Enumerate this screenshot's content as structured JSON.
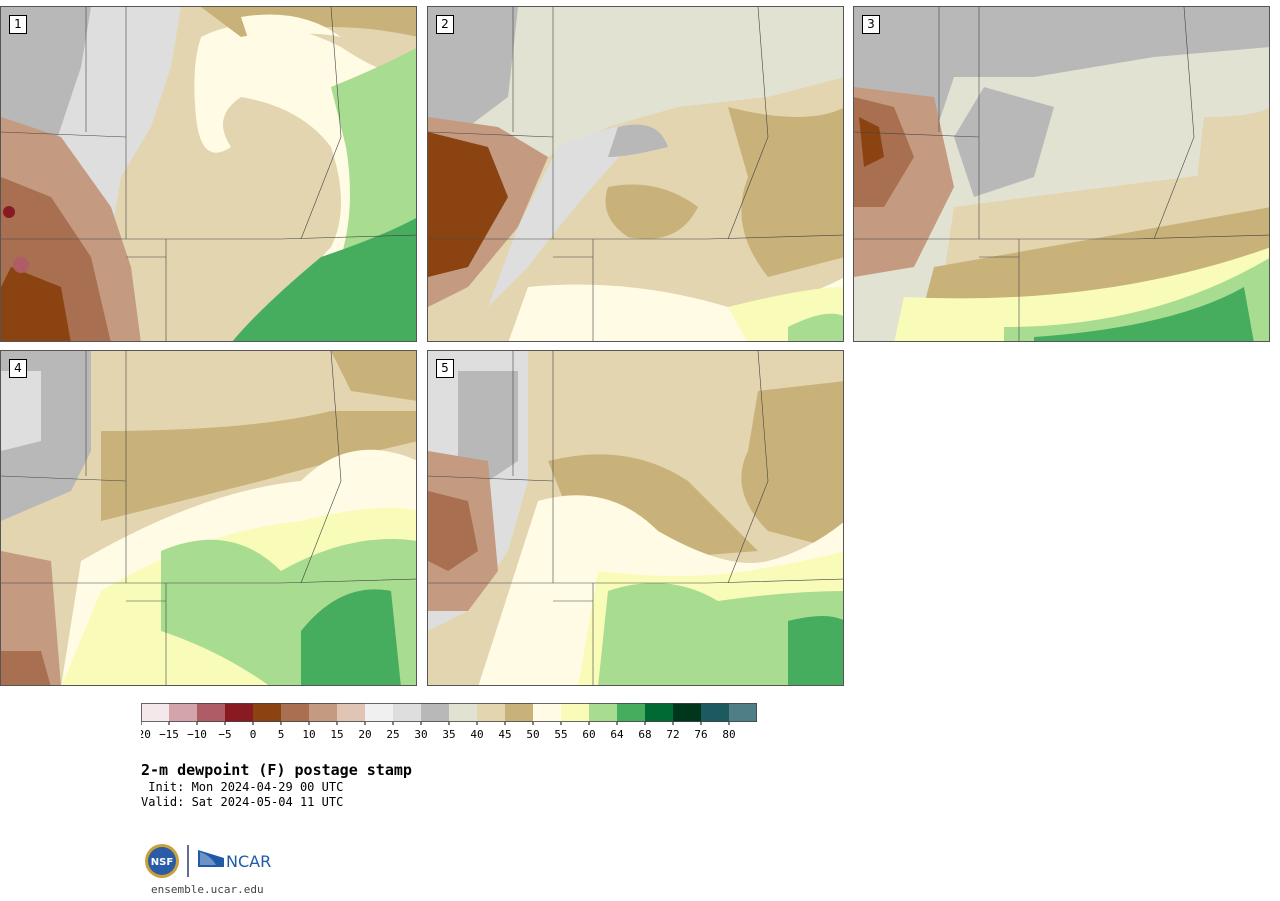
{
  "panels": [
    {
      "label": "1"
    },
    {
      "label": "2"
    },
    {
      "label": "3"
    },
    {
      "label": "4"
    },
    {
      "label": "5"
    }
  ],
  "colorbar": {
    "colors": [
      "#f5e8ea",
      "#d4a4ab",
      "#b05c66",
      "#8a1a22",
      "#8b4411",
      "#a87050",
      "#c49a80",
      "#e0c5b5",
      "#f0f0f0",
      "#dedede",
      "#b8b8b8",
      "#e2e2d2",
      "#e2d5b0",
      "#c9b27a",
      "#fffbe5",
      "#f8fcb8",
      "#a8dc90",
      "#46ad5e",
      "#006a35",
      "#00361c",
      "#1b5a5e",
      "#4f7e86"
    ],
    "tick_labels": [
      "−20",
      "−15",
      "−10",
      "−5",
      "0",
      "5",
      "10",
      "15",
      "20",
      "25",
      "30",
      "35",
      "40",
      "45",
      "50",
      "55",
      "60",
      "64",
      "68",
      "72",
      "76",
      "80"
    ]
  },
  "title": "2-m dewpoint (F) postage stamp",
  "init_text": " Init: Mon 2024-04-29 00 UTC",
  "valid_text": "Valid: Sat 2024-05-04 11 UTC",
  "logos": {
    "nsf": "NSF",
    "ncar": "NCAR"
  },
  "site": "ensemble.ucar.edu"
}
